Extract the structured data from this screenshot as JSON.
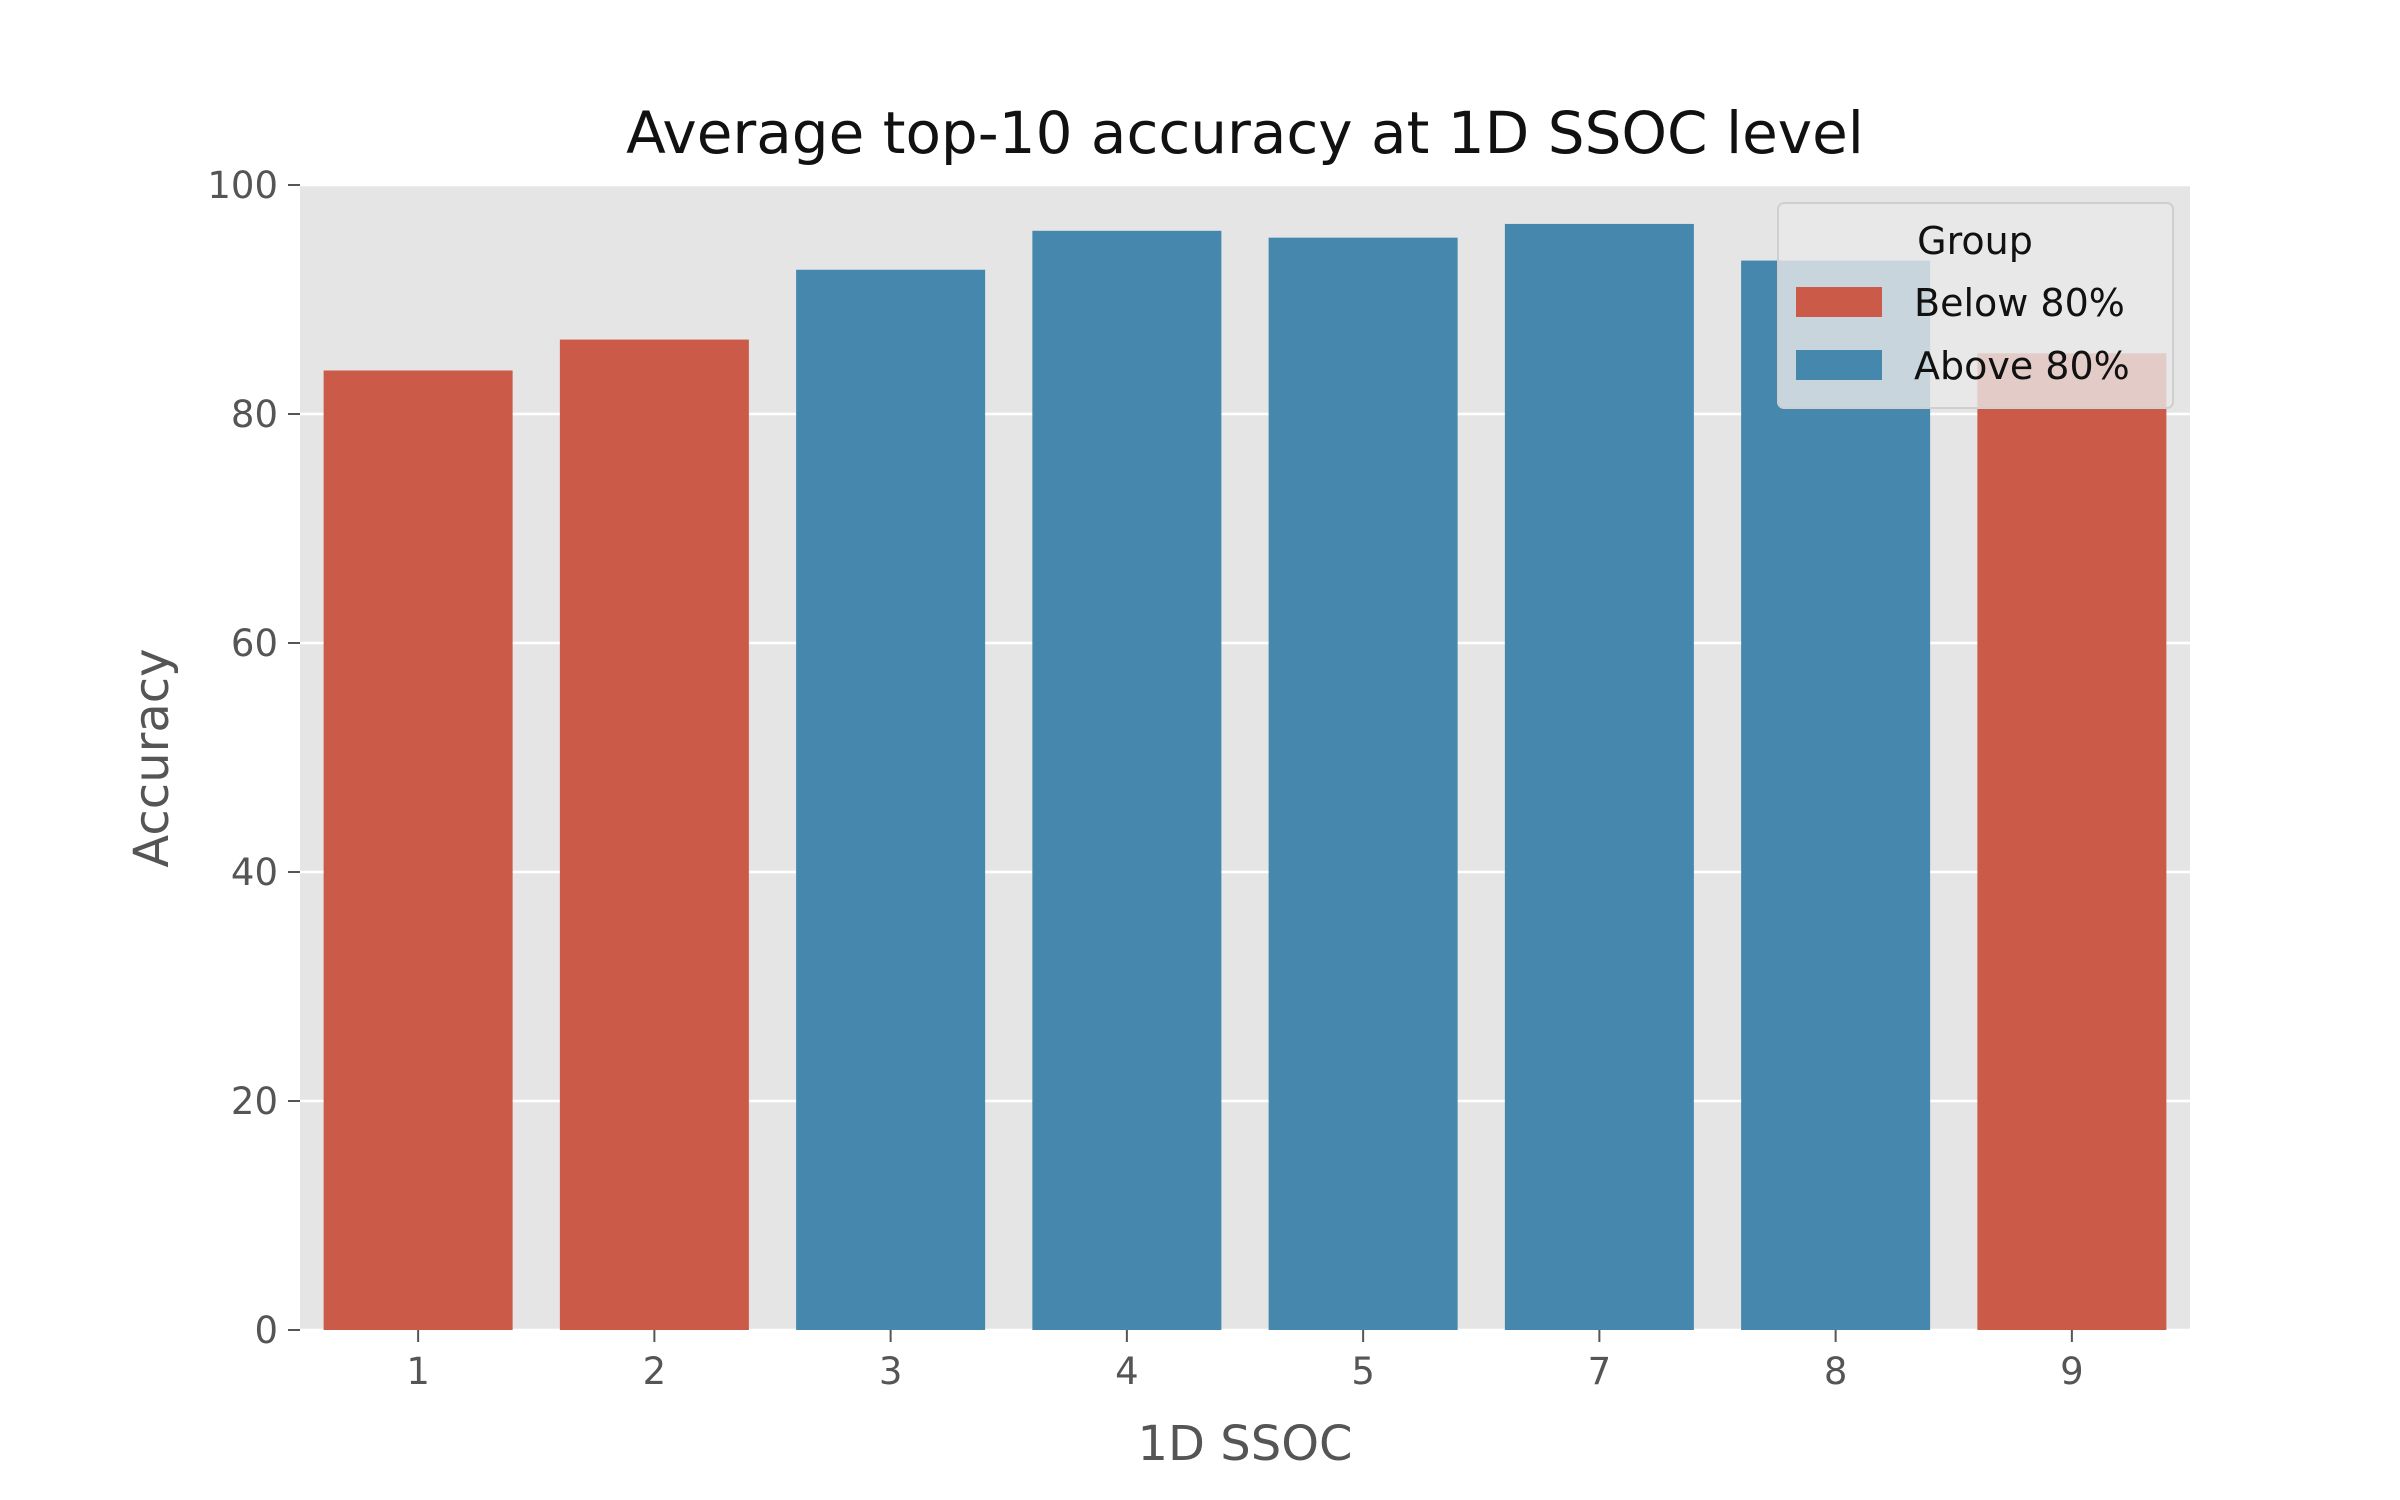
{
  "chart_data": {
    "type": "bar",
    "title": "Average top-10 accuracy at 1D SSOC level",
    "xlabel": "1D SSOC",
    "ylabel": "Accuracy",
    "categories": [
      "1",
      "2",
      "3",
      "4",
      "5",
      "7",
      "8",
      "9"
    ],
    "values": [
      83.8,
      86.5,
      92.6,
      96.0,
      95.4,
      96.6,
      93.4,
      85.3
    ],
    "groups": [
      "Below 80%",
      "Below 80%",
      "Above 80%",
      "Above 80%",
      "Above 80%",
      "Above 80%",
      "Above 80%",
      "Below 80%"
    ],
    "ylim": [
      0,
      100
    ],
    "yticks": [
      0,
      20,
      40,
      60,
      80,
      100
    ],
    "grid": true,
    "legend": {
      "title": "Group",
      "position": "top-right",
      "entries": [
        {
          "label": "Below 80%",
          "color": "#cc5a48"
        },
        {
          "label": "Above 80%",
          "color": "#4587ad"
        }
      ]
    },
    "colors": {
      "background": "#e5e5e5",
      "grid": "#ffffff",
      "below": "#cc5a48",
      "above": "#4587ad"
    }
  }
}
